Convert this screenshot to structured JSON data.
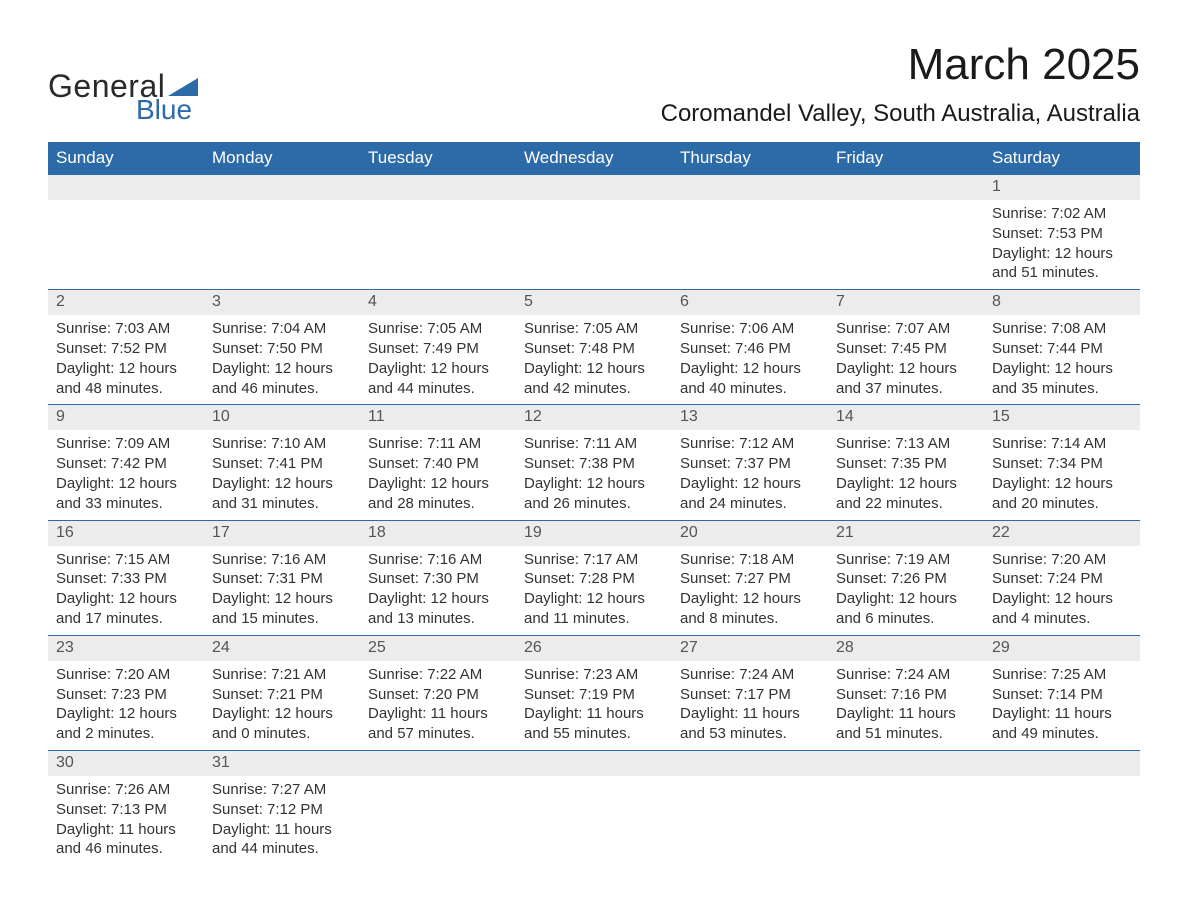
{
  "brand": {
    "line1": "General",
    "line2": "Blue",
    "logo_color": "#2d6aa8",
    "text_color": "#2a2a2a"
  },
  "title": "March 2025",
  "location": "Coromandel Valley, South Australia, Australia",
  "colors": {
    "header_bg": "#2d6aa8",
    "header_text": "#ffffff",
    "daynum_bg": "#ececec",
    "daynum_text": "#555555",
    "body_text": "#333333",
    "row_border": "#2d6aa8",
    "page_bg": "#ffffff"
  },
  "typography": {
    "title_fontsize": 44,
    "location_fontsize": 24,
    "header_fontsize": 17,
    "cell_fontsize": 15,
    "font_family": "Arial"
  },
  "layout": {
    "columns": 7,
    "rows": 6,
    "col_width_pct": 14.28
  },
  "weekdays": [
    "Sunday",
    "Monday",
    "Tuesday",
    "Wednesday",
    "Thursday",
    "Friday",
    "Saturday"
  ],
  "weeks": [
    [
      {
        "day": "",
        "sunrise": "",
        "sunset": "",
        "daylight": ""
      },
      {
        "day": "",
        "sunrise": "",
        "sunset": "",
        "daylight": ""
      },
      {
        "day": "",
        "sunrise": "",
        "sunset": "",
        "daylight": ""
      },
      {
        "day": "",
        "sunrise": "",
        "sunset": "",
        "daylight": ""
      },
      {
        "day": "",
        "sunrise": "",
        "sunset": "",
        "daylight": ""
      },
      {
        "day": "",
        "sunrise": "",
        "sunset": "",
        "daylight": ""
      },
      {
        "day": "1",
        "sunrise": "Sunrise: 7:02 AM",
        "sunset": "Sunset: 7:53 PM",
        "daylight": "Daylight: 12 hours and 51 minutes."
      }
    ],
    [
      {
        "day": "2",
        "sunrise": "Sunrise: 7:03 AM",
        "sunset": "Sunset: 7:52 PM",
        "daylight": "Daylight: 12 hours and 48 minutes."
      },
      {
        "day": "3",
        "sunrise": "Sunrise: 7:04 AM",
        "sunset": "Sunset: 7:50 PM",
        "daylight": "Daylight: 12 hours and 46 minutes."
      },
      {
        "day": "4",
        "sunrise": "Sunrise: 7:05 AM",
        "sunset": "Sunset: 7:49 PM",
        "daylight": "Daylight: 12 hours and 44 minutes."
      },
      {
        "day": "5",
        "sunrise": "Sunrise: 7:05 AM",
        "sunset": "Sunset: 7:48 PM",
        "daylight": "Daylight: 12 hours and 42 minutes."
      },
      {
        "day": "6",
        "sunrise": "Sunrise: 7:06 AM",
        "sunset": "Sunset: 7:46 PM",
        "daylight": "Daylight: 12 hours and 40 minutes."
      },
      {
        "day": "7",
        "sunrise": "Sunrise: 7:07 AM",
        "sunset": "Sunset: 7:45 PM",
        "daylight": "Daylight: 12 hours and 37 minutes."
      },
      {
        "day": "8",
        "sunrise": "Sunrise: 7:08 AM",
        "sunset": "Sunset: 7:44 PM",
        "daylight": "Daylight: 12 hours and 35 minutes."
      }
    ],
    [
      {
        "day": "9",
        "sunrise": "Sunrise: 7:09 AM",
        "sunset": "Sunset: 7:42 PM",
        "daylight": "Daylight: 12 hours and 33 minutes."
      },
      {
        "day": "10",
        "sunrise": "Sunrise: 7:10 AM",
        "sunset": "Sunset: 7:41 PM",
        "daylight": "Daylight: 12 hours and 31 minutes."
      },
      {
        "day": "11",
        "sunrise": "Sunrise: 7:11 AM",
        "sunset": "Sunset: 7:40 PM",
        "daylight": "Daylight: 12 hours and 28 minutes."
      },
      {
        "day": "12",
        "sunrise": "Sunrise: 7:11 AM",
        "sunset": "Sunset: 7:38 PM",
        "daylight": "Daylight: 12 hours and 26 minutes."
      },
      {
        "day": "13",
        "sunrise": "Sunrise: 7:12 AM",
        "sunset": "Sunset: 7:37 PM",
        "daylight": "Daylight: 12 hours and 24 minutes."
      },
      {
        "day": "14",
        "sunrise": "Sunrise: 7:13 AM",
        "sunset": "Sunset: 7:35 PM",
        "daylight": "Daylight: 12 hours and 22 minutes."
      },
      {
        "day": "15",
        "sunrise": "Sunrise: 7:14 AM",
        "sunset": "Sunset: 7:34 PM",
        "daylight": "Daylight: 12 hours and 20 minutes."
      }
    ],
    [
      {
        "day": "16",
        "sunrise": "Sunrise: 7:15 AM",
        "sunset": "Sunset: 7:33 PM",
        "daylight": "Daylight: 12 hours and 17 minutes."
      },
      {
        "day": "17",
        "sunrise": "Sunrise: 7:16 AM",
        "sunset": "Sunset: 7:31 PM",
        "daylight": "Daylight: 12 hours and 15 minutes."
      },
      {
        "day": "18",
        "sunrise": "Sunrise: 7:16 AM",
        "sunset": "Sunset: 7:30 PM",
        "daylight": "Daylight: 12 hours and 13 minutes."
      },
      {
        "day": "19",
        "sunrise": "Sunrise: 7:17 AM",
        "sunset": "Sunset: 7:28 PM",
        "daylight": "Daylight: 12 hours and 11 minutes."
      },
      {
        "day": "20",
        "sunrise": "Sunrise: 7:18 AM",
        "sunset": "Sunset: 7:27 PM",
        "daylight": "Daylight: 12 hours and 8 minutes."
      },
      {
        "day": "21",
        "sunrise": "Sunrise: 7:19 AM",
        "sunset": "Sunset: 7:26 PM",
        "daylight": "Daylight: 12 hours and 6 minutes."
      },
      {
        "day": "22",
        "sunrise": "Sunrise: 7:20 AM",
        "sunset": "Sunset: 7:24 PM",
        "daylight": "Daylight: 12 hours and 4 minutes."
      }
    ],
    [
      {
        "day": "23",
        "sunrise": "Sunrise: 7:20 AM",
        "sunset": "Sunset: 7:23 PM",
        "daylight": "Daylight: 12 hours and 2 minutes."
      },
      {
        "day": "24",
        "sunrise": "Sunrise: 7:21 AM",
        "sunset": "Sunset: 7:21 PM",
        "daylight": "Daylight: 12 hours and 0 minutes."
      },
      {
        "day": "25",
        "sunrise": "Sunrise: 7:22 AM",
        "sunset": "Sunset: 7:20 PM",
        "daylight": "Daylight: 11 hours and 57 minutes."
      },
      {
        "day": "26",
        "sunrise": "Sunrise: 7:23 AM",
        "sunset": "Sunset: 7:19 PM",
        "daylight": "Daylight: 11 hours and 55 minutes."
      },
      {
        "day": "27",
        "sunrise": "Sunrise: 7:24 AM",
        "sunset": "Sunset: 7:17 PM",
        "daylight": "Daylight: 11 hours and 53 minutes."
      },
      {
        "day": "28",
        "sunrise": "Sunrise: 7:24 AM",
        "sunset": "Sunset: 7:16 PM",
        "daylight": "Daylight: 11 hours and 51 minutes."
      },
      {
        "day": "29",
        "sunrise": "Sunrise: 7:25 AM",
        "sunset": "Sunset: 7:14 PM",
        "daylight": "Daylight: 11 hours and 49 minutes."
      }
    ],
    [
      {
        "day": "30",
        "sunrise": "Sunrise: 7:26 AM",
        "sunset": "Sunset: 7:13 PM",
        "daylight": "Daylight: 11 hours and 46 minutes."
      },
      {
        "day": "31",
        "sunrise": "Sunrise: 7:27 AM",
        "sunset": "Sunset: 7:12 PM",
        "daylight": "Daylight: 11 hours and 44 minutes."
      },
      {
        "day": "",
        "sunrise": "",
        "sunset": "",
        "daylight": ""
      },
      {
        "day": "",
        "sunrise": "",
        "sunset": "",
        "daylight": ""
      },
      {
        "day": "",
        "sunrise": "",
        "sunset": "",
        "daylight": ""
      },
      {
        "day": "",
        "sunrise": "",
        "sunset": "",
        "daylight": ""
      },
      {
        "day": "",
        "sunrise": "",
        "sunset": "",
        "daylight": ""
      }
    ]
  ]
}
